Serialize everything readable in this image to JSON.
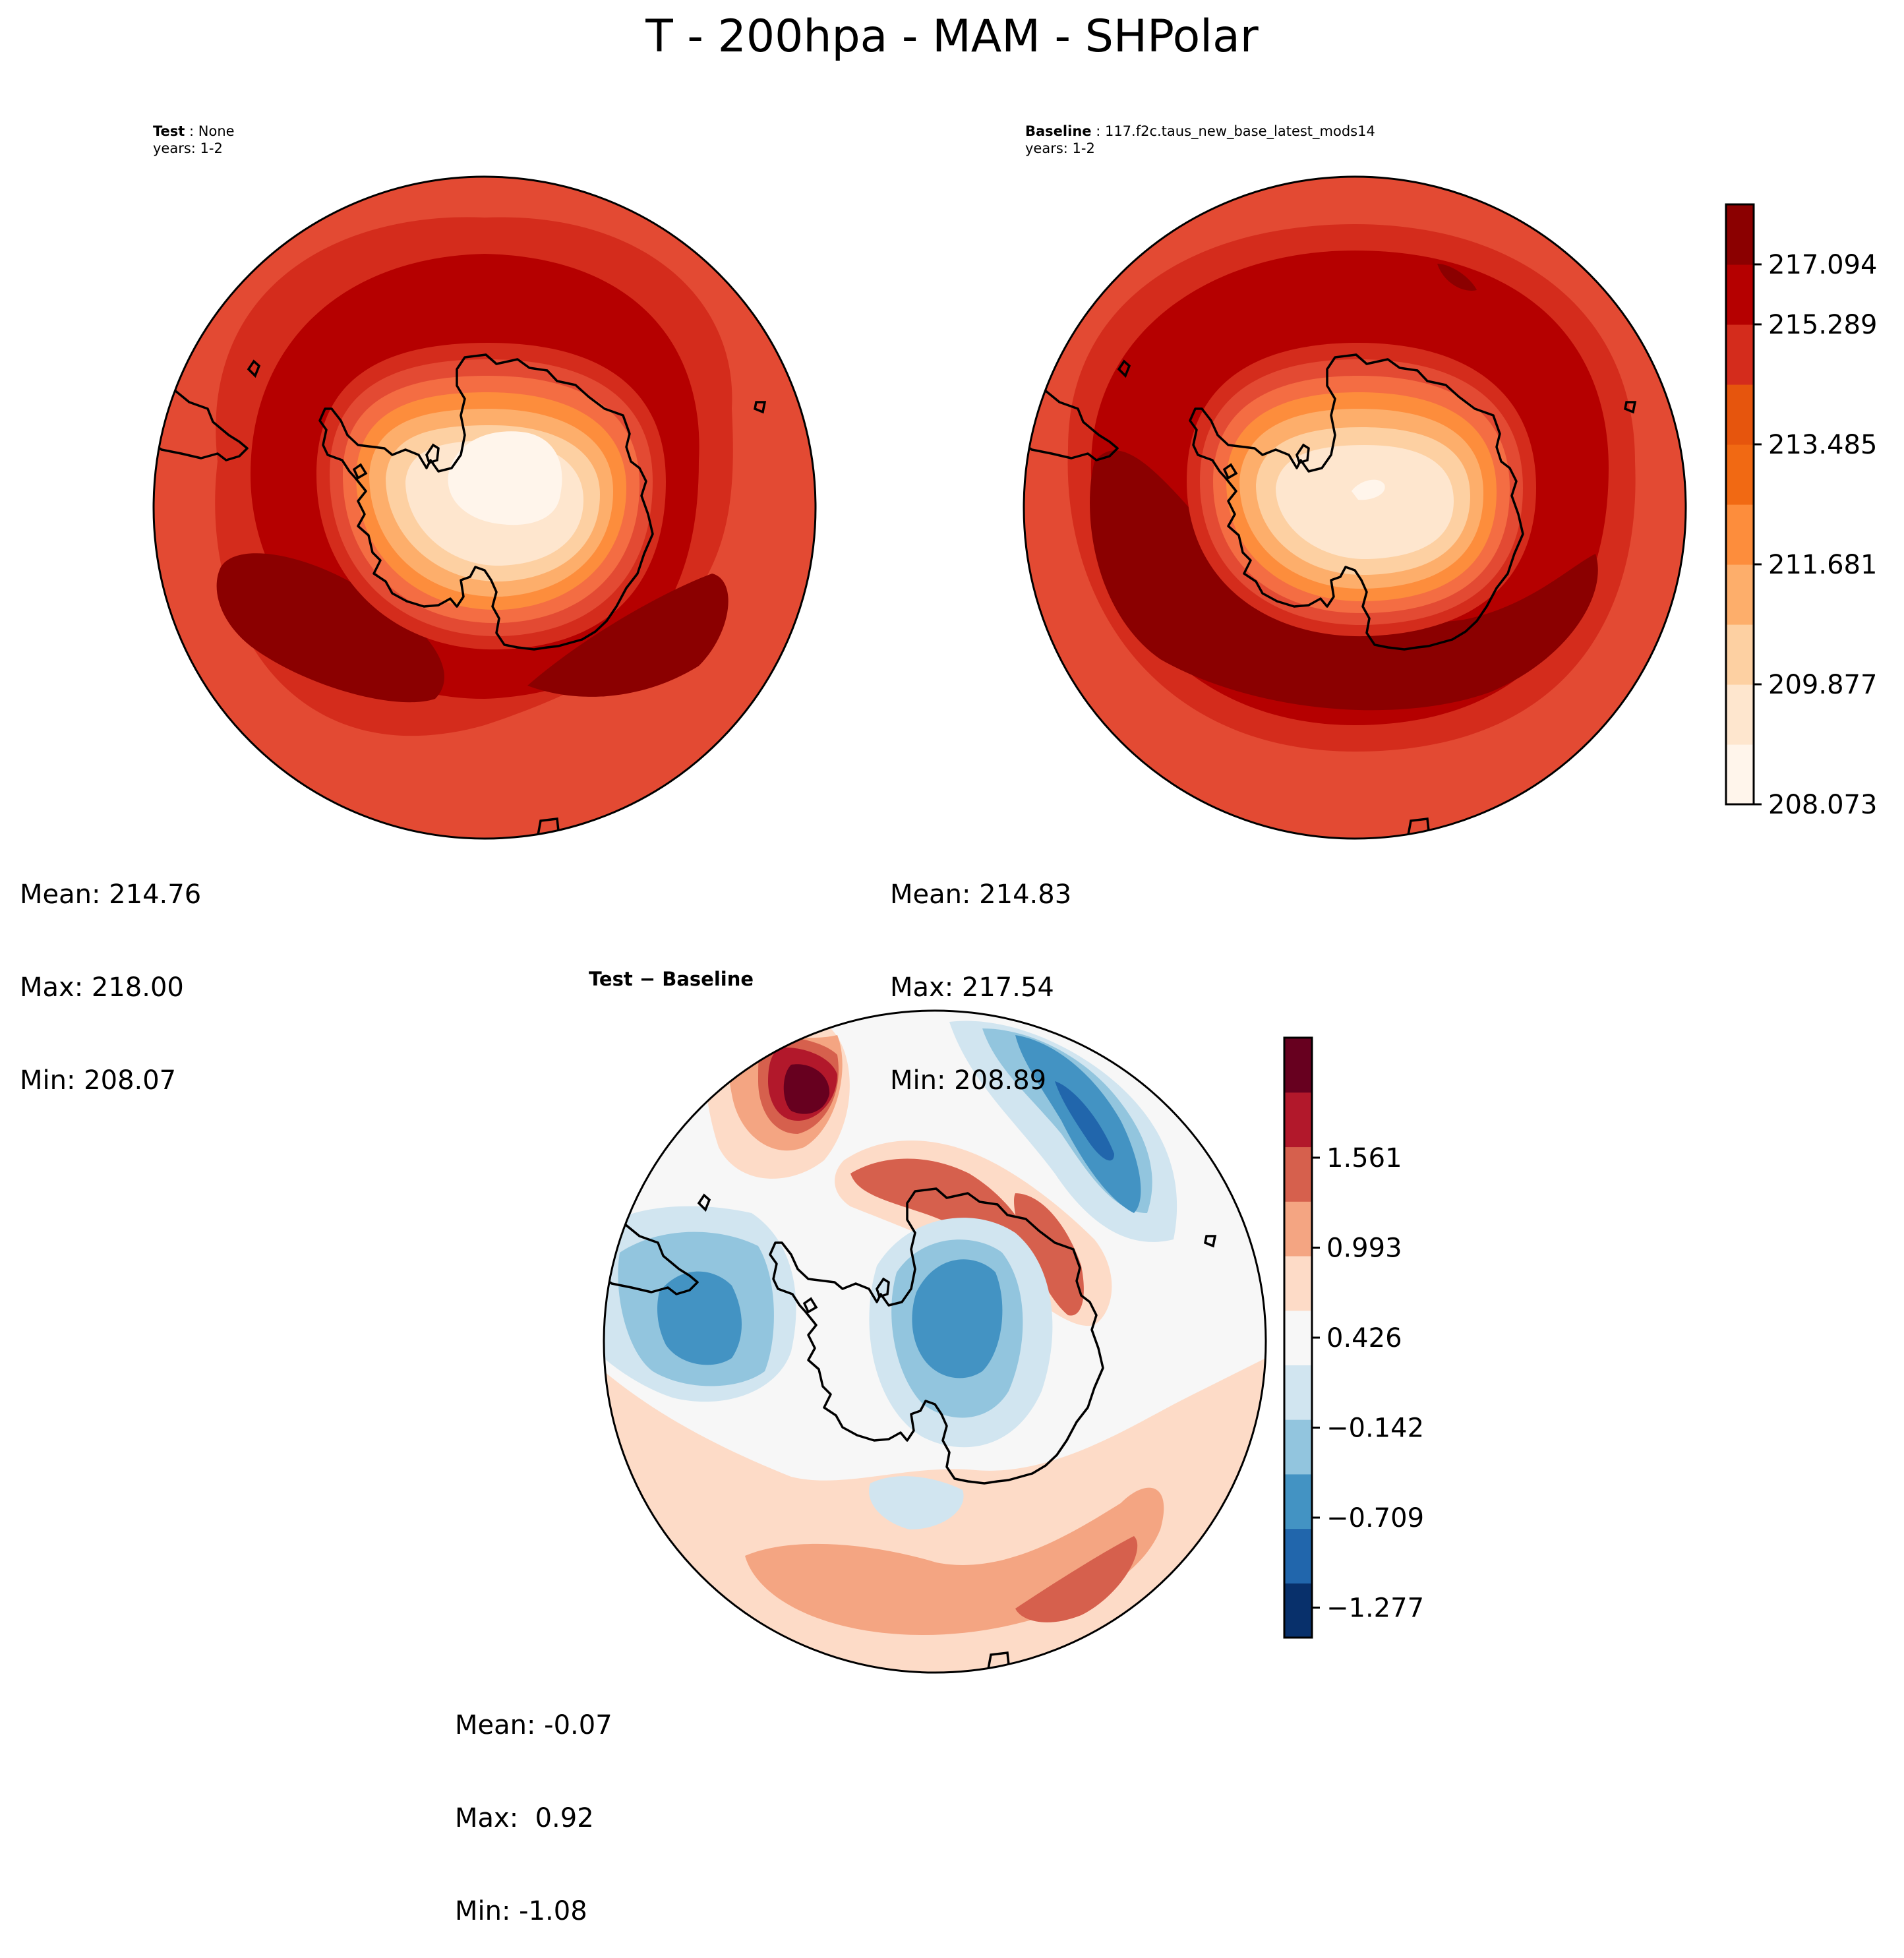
{
  "title": "T - 200hpa - MAM - SHPolar",
  "panels": {
    "test": {
      "label_name": "Test",
      "label_value": "None",
      "years": "years: 1-2",
      "stats": {
        "mean": "Mean: 214.76",
        "max": "Max: 218.00",
        "min": "Min: 208.07"
      }
    },
    "baseline": {
      "label_name": "Baseline",
      "label_value": "117.f2c.taus_new_base_latest_mods14",
      "years": "years: 1-2",
      "stats": {
        "mean": "Mean: 214.83",
        "max": "Max: 217.54",
        "min": "Min: 208.89"
      }
    },
    "diff": {
      "label": "Test − Baseline",
      "stats": {
        "mean": "Mean: -0.07",
        "max": "Max:  0.92",
        "min": "Min: -1.08"
      }
    }
  },
  "colorbars": {
    "main": {
      "ticks": [
        "208.073",
        "209.877",
        "211.681",
        "213.485",
        "215.289",
        "217.094"
      ],
      "colors": [
        "#fff5eb",
        "#fee6ce",
        "#fdd0a2",
        "#fdae6b",
        "#fd8d3c",
        "#f16913",
        "#e6550d",
        "#d42c1c",
        "#b50000",
        "#8b0000"
      ]
    },
    "diff": {
      "ticks": [
        "−1.277",
        "−0.709",
        "−0.142",
        "0.426",
        "0.993",
        "1.561"
      ],
      "colors": [
        "#08306b",
        "#2166ac",
        "#4393c3",
        "#92c5de",
        "#d1e5f0",
        "#f7f7f7",
        "#fddbc7",
        "#f4a582",
        "#d6604d",
        "#b2182b",
        "#67001f"
      ]
    }
  },
  "map_palette": {
    "r0": "#fff5eb",
    "r1": "#fee6ce",
    "r2": "#fdd0a2",
    "r3": "#fdae6b",
    "r4": "#fd8d3c",
    "r5": "#f46d43",
    "r6": "#e34a33",
    "r7": "#d42c1c",
    "r8": "#b50000",
    "r9": "#8b0000",
    "b0": "#2166ac",
    "b1": "#4393c3",
    "b2": "#92c5de",
    "b3": "#d1e5f0",
    "w": "#f7f7f7",
    "p1": "#fddbc7",
    "p2": "#f4a582",
    "p3": "#d6604d",
    "p4": "#b2182b",
    "p5": "#67001f"
  }
}
